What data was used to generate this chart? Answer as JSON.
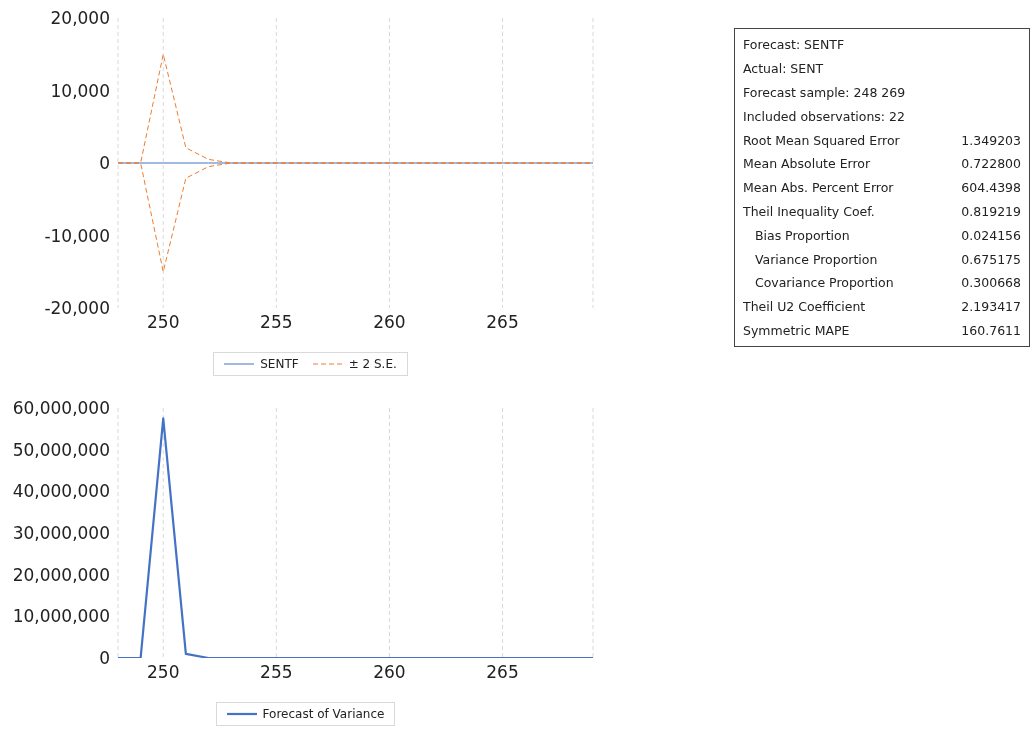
{
  "chart_data": [
    {
      "type": "line",
      "x": [
        248,
        249,
        250,
        251,
        252,
        253,
        254,
        255,
        256,
        257,
        258,
        259,
        260,
        261,
        262,
        263,
        264,
        265,
        266,
        267,
        268,
        269
      ],
      "series": [
        {
          "name": "SENTF",
          "color": "#4472c4",
          "line_style": "solid",
          "values": [
            0,
            0,
            0,
            0,
            0,
            0,
            0,
            0,
            0,
            0,
            0,
            0,
            0,
            0,
            0,
            0,
            0,
            0,
            0,
            0,
            0,
            0
          ]
        },
        {
          "name": "± 2 S.E.",
          "color": "#ed7d31",
          "line_style": "dashed",
          "values": [
            0,
            0,
            15000,
            2100,
            500,
            0,
            0,
            0,
            0,
            0,
            0,
            0,
            0,
            0,
            0,
            0,
            0,
            0,
            0,
            0,
            0,
            0
          ]
        },
        {
          "color": "#ed7d31",
          "line_style": "dashed",
          "values": [
            0,
            0,
            -15000,
            -2100,
            -500,
            0,
            0,
            0,
            0,
            0,
            0,
            0,
            0,
            0,
            0,
            0,
            0,
            0,
            0,
            0,
            0,
            0
          ]
        }
      ],
      "xlim": [
        248,
        269
      ],
      "xticks": [
        250,
        255,
        260,
        265
      ],
      "ylim": [
        -20000,
        20000
      ],
      "yticks": [
        {
          "value": -20000,
          "label": "-20,000"
        },
        {
          "value": -10000,
          "label": "-10,000"
        },
        0,
        {
          "value": 10000,
          "label": "10,000"
        },
        {
          "value": 20000,
          "label": "20,000"
        }
      ],
      "grid": "x",
      "legend": "bottom",
      "marker": "none"
    },
    {
      "type": "other",
      "categories": [
        "Forecast: SENTF",
        "Actual: SENT",
        "Forecast sample: 248 269",
        "Included observations: 22",
        "Root Mean Squared Error",
        "Mean Absolute Error",
        "Mean Abs. Percent Error",
        "Theil Inequality Coef.",
        "   Bias Proportion",
        "   Variance Proportion",
        "   Covariance Proportion",
        "Theil U2 Coefficient",
        "Symmetric MAPE"
      ],
      "value_labels": [
        null,
        null,
        null,
        null,
        "1.349203",
        "0.722800",
        "604.4398",
        "0.819219",
        "0.024156",
        "0.675175",
        "0.300668",
        "2.193417",
        "160.7611"
      ]
    },
    {
      "type": "line",
      "x": [
        248,
        249,
        250,
        251,
        252,
        253,
        254,
        255,
        256,
        257,
        258,
        259,
        260,
        261,
        262,
        263,
        264,
        265,
        266,
        267,
        268,
        269
      ],
      "series": [
        {
          "name": "Forecast of Variance",
          "color": "#4472c4",
          "line_style": "solid",
          "values": [
            0,
            0,
            57500000,
            1000000,
            0,
            0,
            0,
            0,
            0,
            0,
            0,
            0,
            0,
            0,
            0,
            0,
            0,
            0,
            0,
            0,
            0,
            0
          ]
        }
      ],
      "xlim": [
        248,
        269
      ],
      "xticks": [
        250,
        255,
        260,
        265
      ],
      "ylim": [
        0,
        60000000
      ],
      "yticks": [
        0,
        {
          "value": 10000000,
          "label": "10,000,000"
        },
        {
          "value": 20000000,
          "label": "20,000,000"
        },
        {
          "value": 30000000,
          "label": "30,000,000"
        },
        {
          "value": 40000000,
          "label": "40,000,000"
        },
        {
          "value": 50000000,
          "label": "50,000,000"
        },
        {
          "value": 60000000,
          "label": "60,000,000"
        }
      ],
      "grid": "x",
      "legend": "bottom",
      "marker": "none"
    }
  ]
}
